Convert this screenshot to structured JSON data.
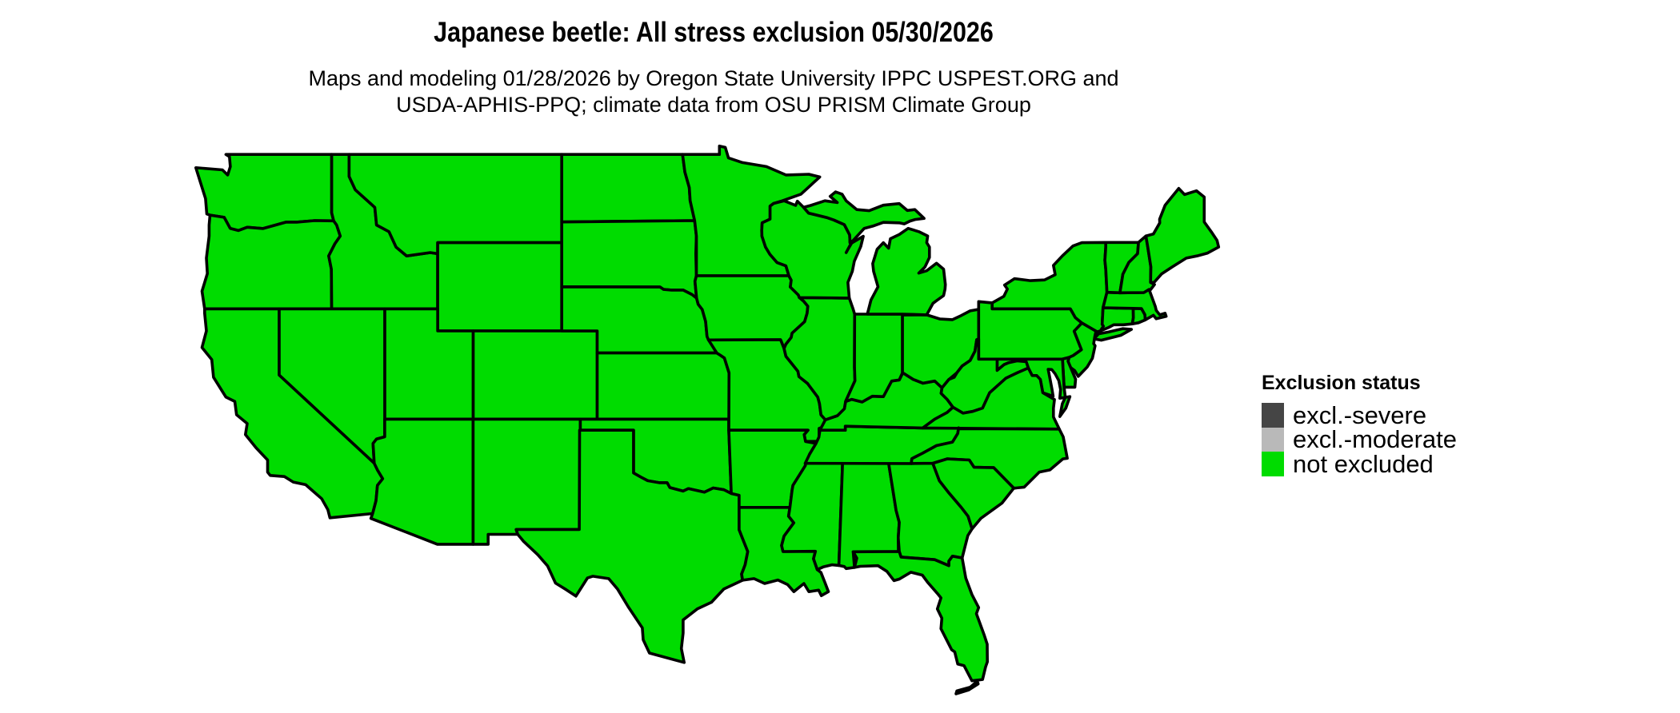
{
  "header": {
    "title": "Japanese beetle: All stress exclusion 05/30/2026",
    "subtitle_line1": "Maps and modeling 01/28/2026 by Oregon State University IPPC USPEST.ORG and",
    "subtitle_line2": "USDA-APHIS-PPQ; climate data from OSU PRISM Climate Group"
  },
  "legend": {
    "title": "Exclusion status",
    "items": [
      {
        "label": "excl.-severe",
        "color": "#454545"
      },
      {
        "label": "excl.-moderate",
        "color": "#b9b9b9"
      },
      {
        "label": "not excluded",
        "color": "#00dc00"
      }
    ]
  },
  "map": {
    "region": "Contiguous United States",
    "fill": "#00dc00",
    "border": "#000000",
    "background": "#ffffff",
    "status_all_visible_states": "not excluded"
  },
  "chart_data": {
    "type": "choropleth-map",
    "title": "Japanese beetle: All stress exclusion 05/30/2026",
    "categories": [
      "excl.-severe",
      "excl.-moderate",
      "not excluded"
    ],
    "category_colors": [
      "#454545",
      "#b9b9b9",
      "#00dc00"
    ],
    "values": {
      "all_contiguous_us_states": "not excluded"
    },
    "legend_position": "right",
    "legend_title": "Exclusion status"
  }
}
